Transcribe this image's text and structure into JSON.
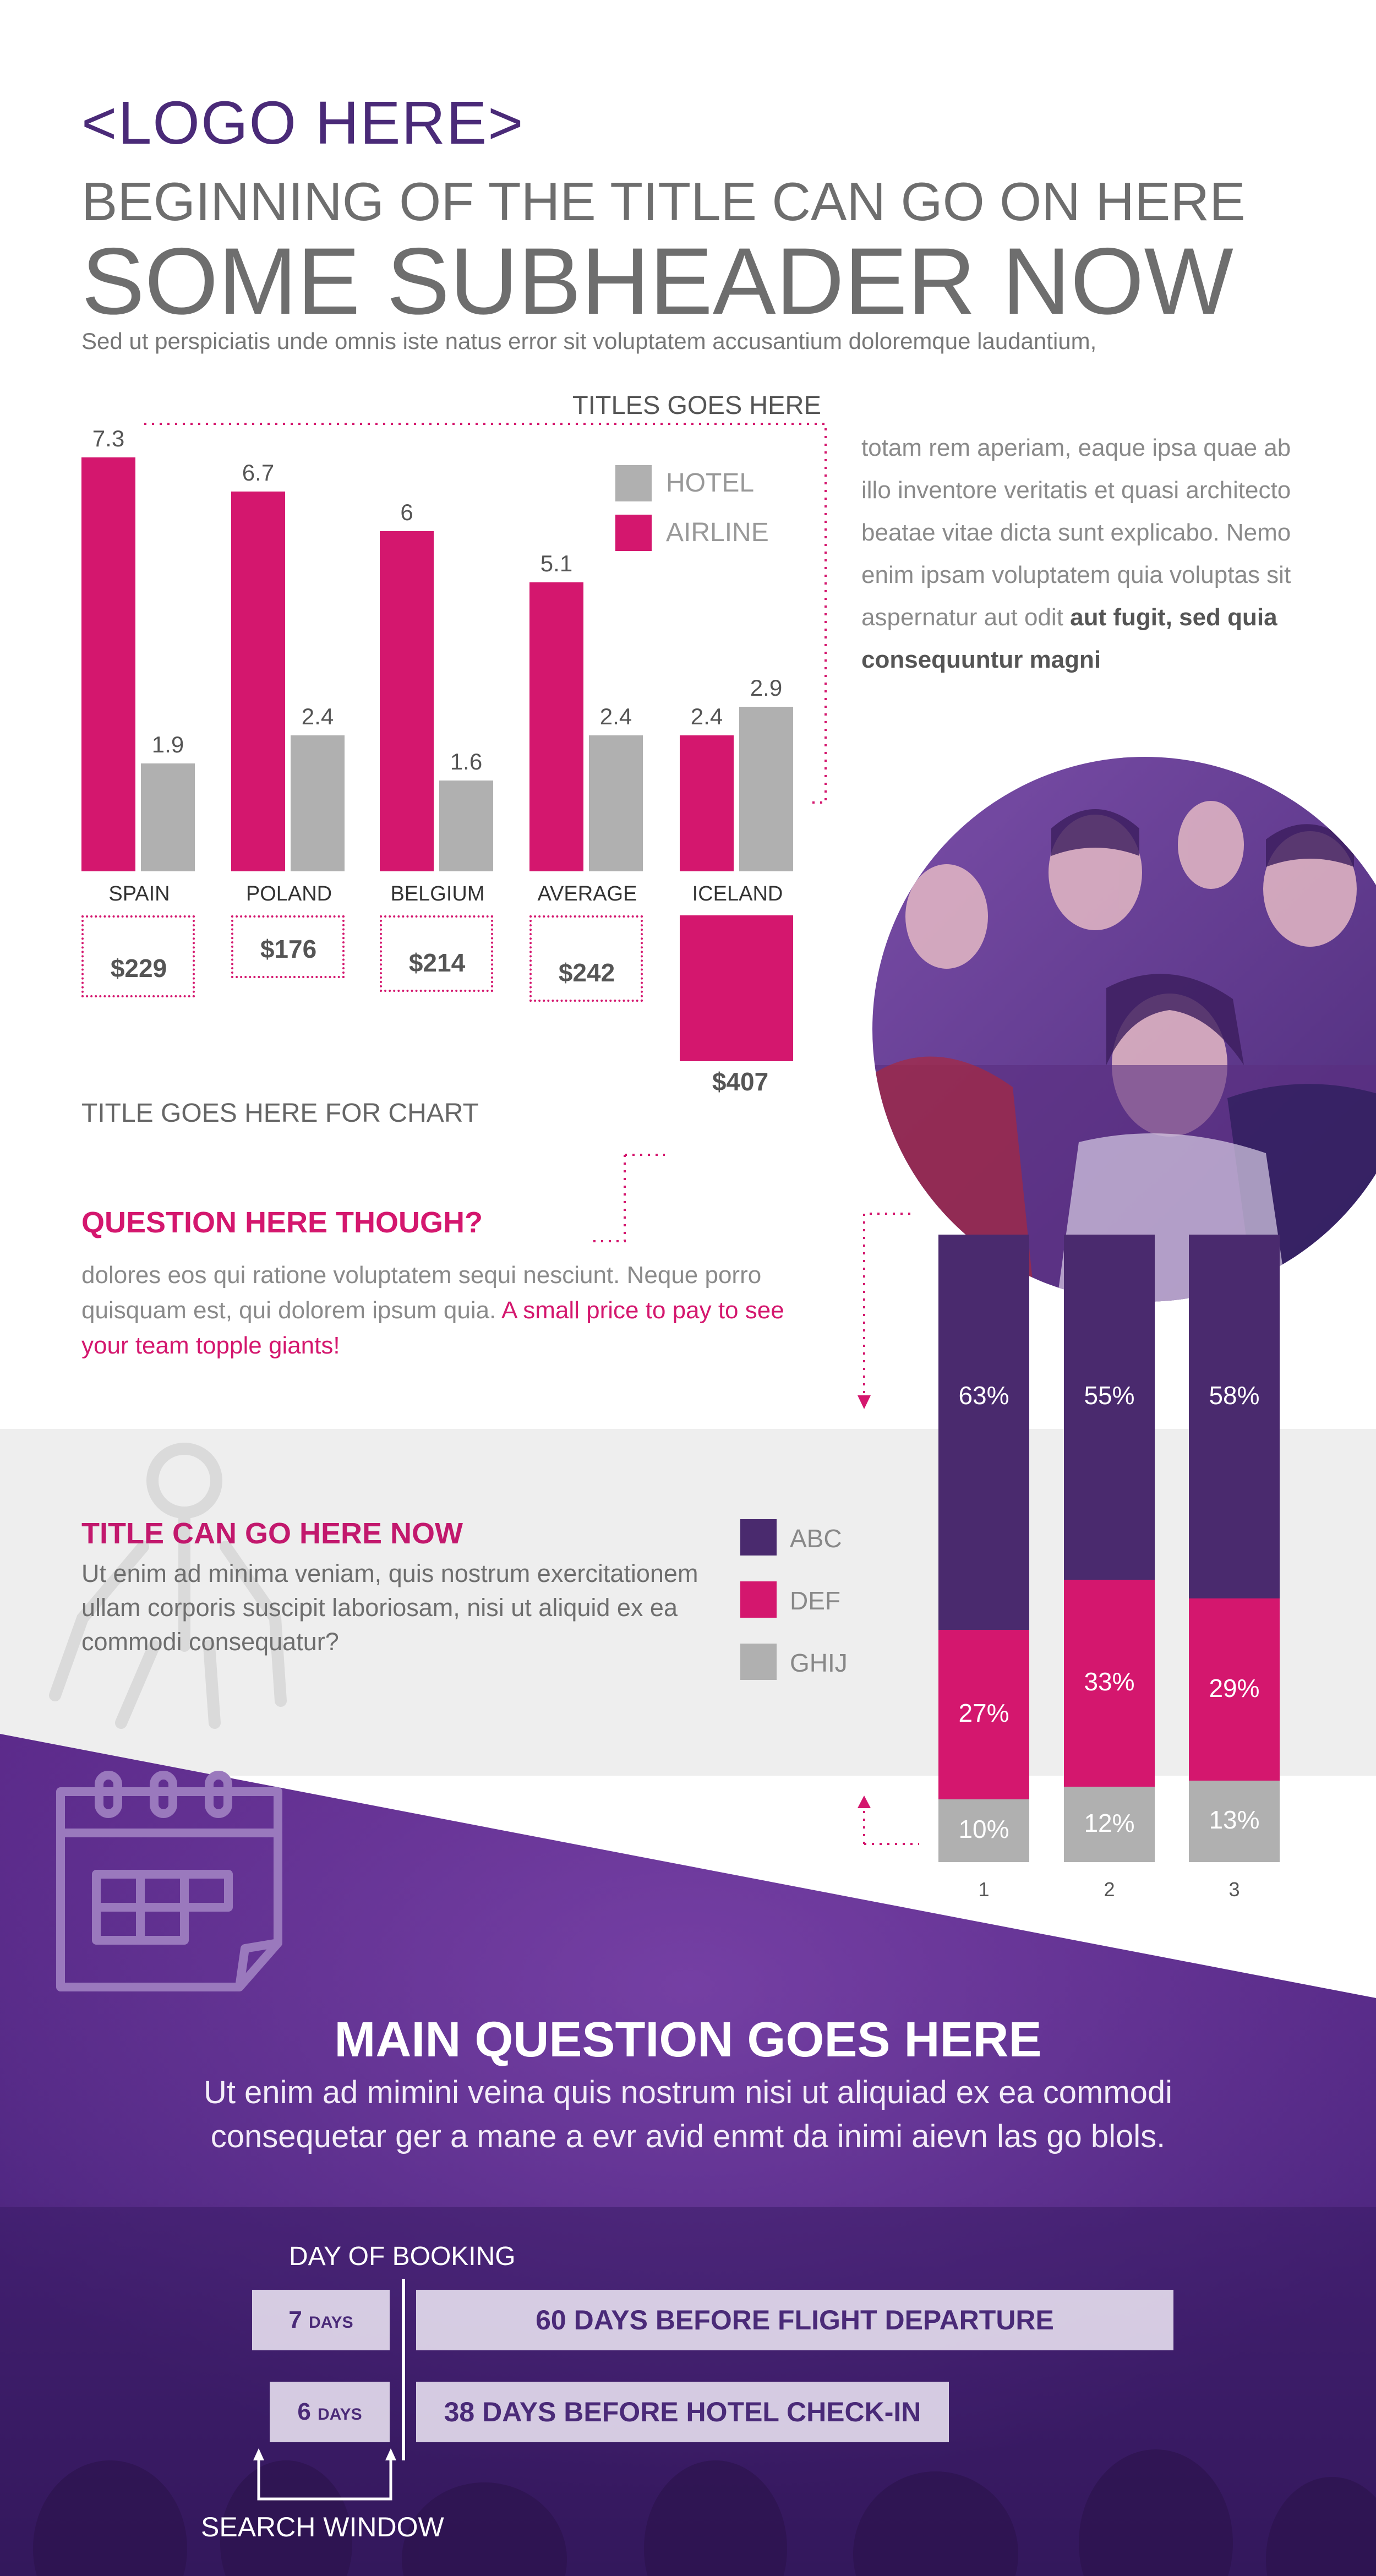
{
  "header": {
    "logo": "<LOGO HERE>",
    "title": "BEGINNING OF THE TITLE CAN GO ON HERE",
    "subheader": "SOME SUBHEADER NOW",
    "intro": "Sed ut perspiciatis unde omnis iste natus error sit voluptatem accusantium doloremque laudantium,"
  },
  "side_text": {
    "plain": "totam rem aperiam, eaque ipsa quae ab illo inventore veritatis et quasi architecto beatae vitae dicta sunt explicabo. Nemo enim ipsam voluptatem quia voluptas sit aspernatur aut odit",
    "bold": "aut fugit, sed quia consequuntur magni"
  },
  "chart_data": [
    {
      "type": "bar",
      "title": "TITLES GOES HERE",
      "categories": [
        "SPAIN",
        "POLAND",
        "BELGIUM",
        "AVERAGE",
        "ICELAND"
      ],
      "series": [
        {
          "name": "AIRLINE",
          "color": "#d4176e",
          "values": [
            7.3,
            6.7,
            6,
            5.1,
            2.4
          ]
        },
        {
          "name": "HOTEL",
          "color": "#b0b0b0",
          "values": [
            1.9,
            2.4,
            1.6,
            2.4,
            2.9
          ]
        }
      ],
      "legend_position": "top-right",
      "price_subtitle": "TITLE GOES HERE FOR CHART",
      "prices": [
        "$229",
        "$176",
        "$214",
        "$242",
        "$407"
      ],
      "price_values": [
        229,
        176,
        214,
        242,
        407
      ],
      "highlight_category": "ICELAND"
    },
    {
      "type": "bar",
      "stacked": true,
      "categories": [
        "1",
        "2",
        "3"
      ],
      "series": [
        {
          "name": "ABC",
          "color": "#4a2a6e",
          "values": [
            63,
            55,
            58
          ],
          "labels": [
            "63%",
            "55%",
            "58%"
          ]
        },
        {
          "name": "DEF",
          "color": "#d4176e",
          "values": [
            27,
            33,
            29
          ],
          "labels": [
            "27%",
            "33%",
            "29%"
          ]
        },
        {
          "name": "GHIJ",
          "color": "#b0b0b0",
          "values": [
            10,
            12,
            13
          ],
          "labels": [
            "10%",
            "12%",
            "13%"
          ]
        }
      ],
      "legend_position": "left"
    }
  ],
  "question": {
    "title": "QUESTION HERE THOUGH?",
    "body": "dolores eos qui ratione voluptatem sequi nesciunt. Neque porro quisquam est, qui dolorem ipsum quia.",
    "highlight": "A small price to pay to see your team topple giants!"
  },
  "band": {
    "title": "TITLE CAN GO HERE NOW",
    "text": "Ut enim ad minima veniam, quis nostrum exercitationem ullam corporis suscipit laboriosam, nisi ut aliquid ex ea commodi consequatur?"
  },
  "main": {
    "question": "MAIN QUESTION GOES HERE",
    "body": "Ut enim ad mimini veina quis nostrum nisi ut aliquiad ex ea commodi consequetar ger a mane a evr avid enmt da inimi aievn las go blols."
  },
  "booking": {
    "day_label": "DAY OF BOOKING",
    "search_label": "SEARCH WINDOW",
    "rows": [
      {
        "num": "7",
        "unit": "DAYS",
        "text": "60 DAYS BEFORE FLIGHT DEPARTURE"
      },
      {
        "num": "6",
        "unit": "DAYS",
        "text": "38 DAYS BEFORE HOTEL CHECK-IN"
      }
    ]
  },
  "colors": {
    "purple": "#4a2a78",
    "magenta": "#d4176e",
    "gray": "#b0b0b0"
  },
  "icons": [
    "person-icon",
    "calendar-icon",
    "crowd-photo"
  ]
}
